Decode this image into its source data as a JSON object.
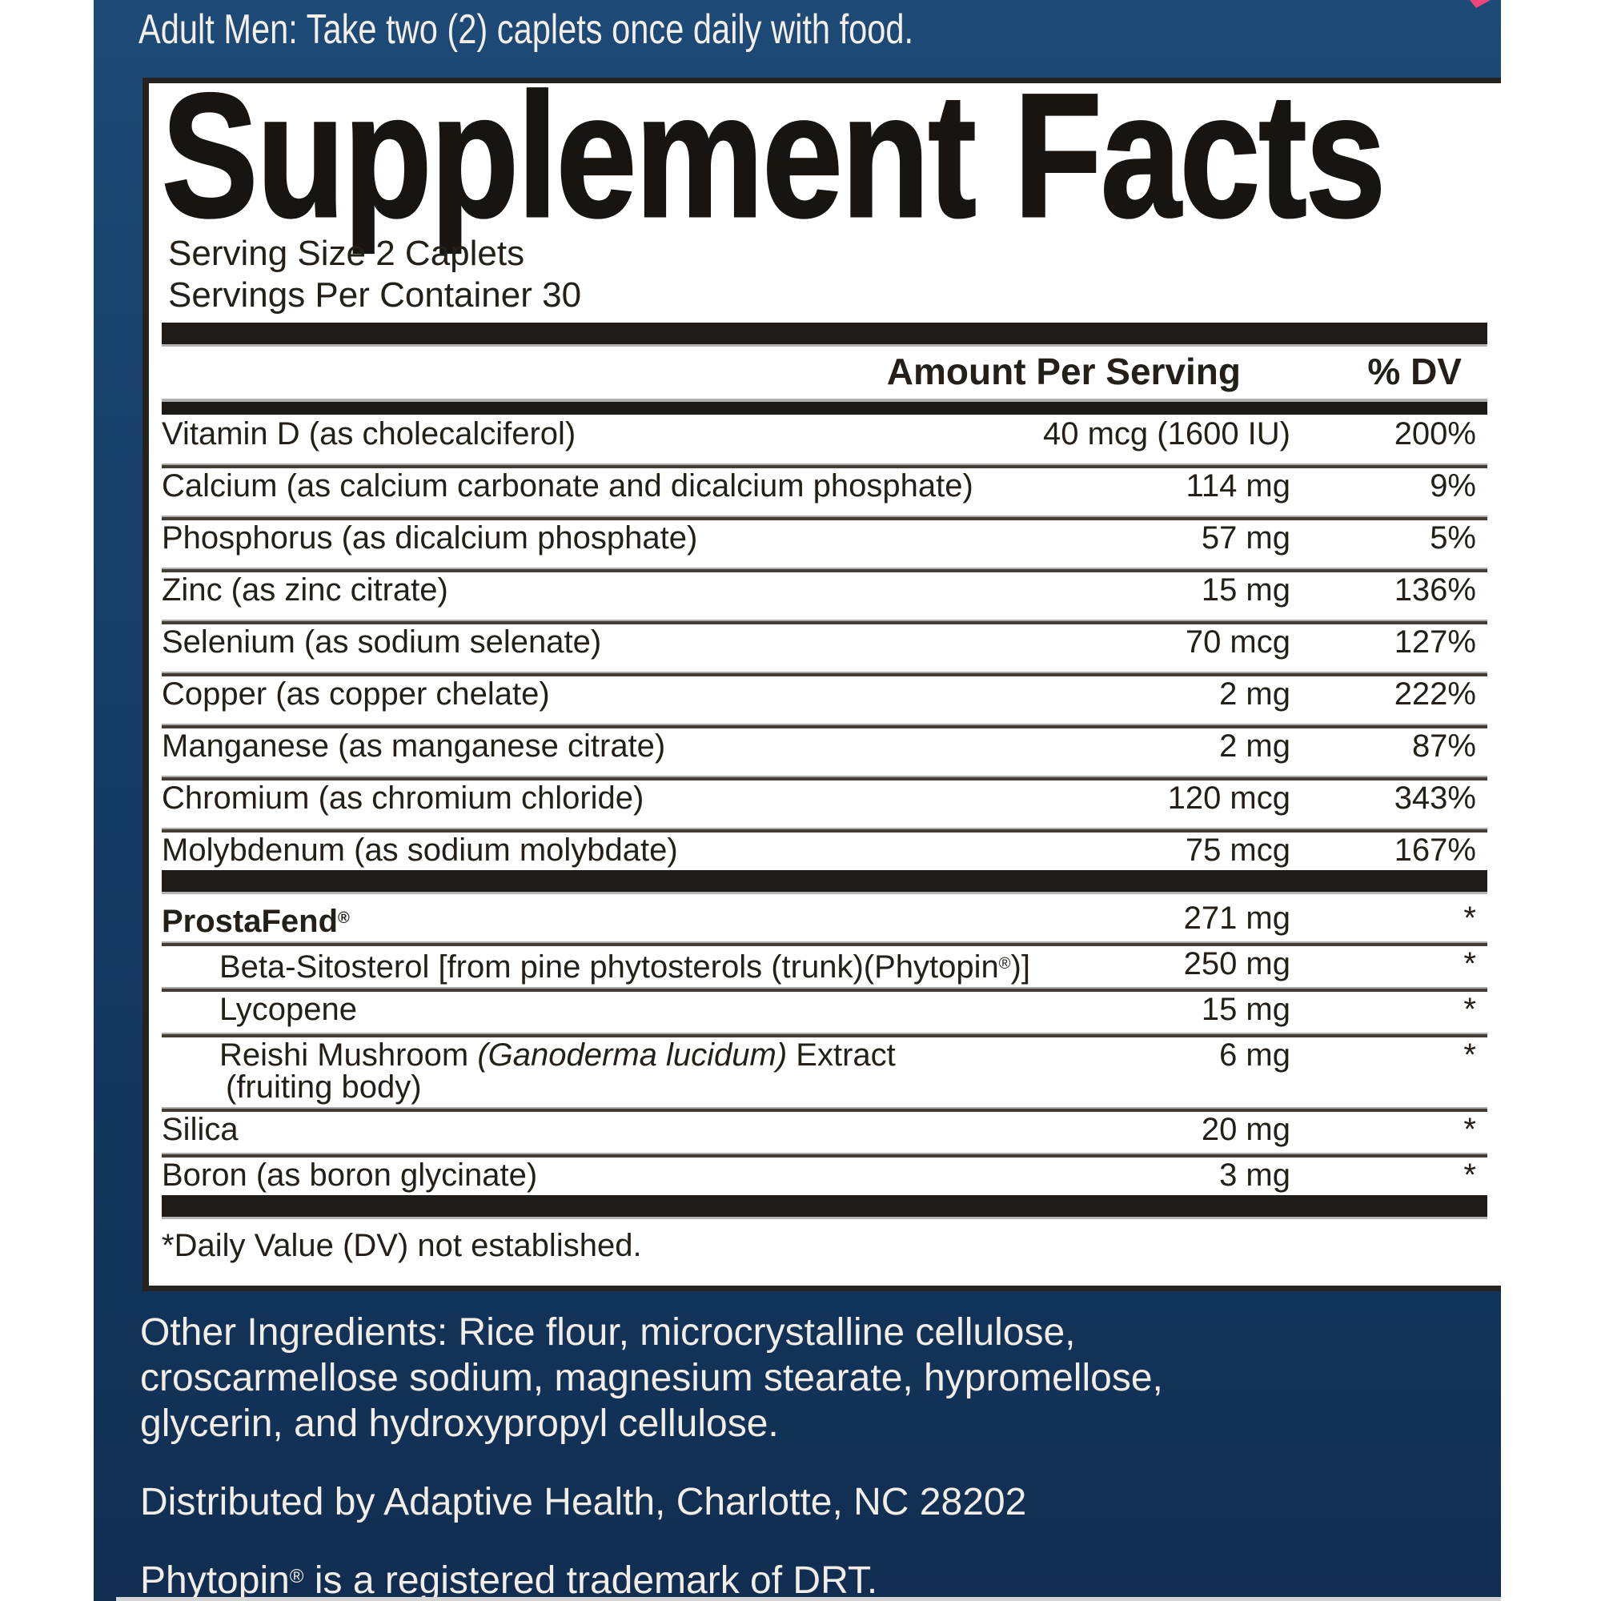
{
  "banner": {
    "dosage": "Adult Men: Take two (2) caplets once daily with food."
  },
  "panel": {
    "title": "Supplement Facts",
    "serving_size": "Serving Size 2 Caplets",
    "servings_per_container": "Servings Per Container 30",
    "columns": {
      "amount": "Amount Per Serving",
      "dv": "% DV"
    },
    "mineral_rows": [
      {
        "name": "Vitamin D (as cholecalciferol)",
        "amount": "40 mcg (1600 IU)",
        "dv": "200%"
      },
      {
        "name": "Calcium (as calcium carbonate and dicalcium phosphate)",
        "amount": "114 mg",
        "dv": "9%"
      },
      {
        "name": "Phosphorus (as dicalcium phosphate)",
        "amount": "57 mg",
        "dv": "5%"
      },
      {
        "name": "Zinc (as zinc citrate)",
        "amount": "15 mg",
        "dv": "136%"
      },
      {
        "name": "Selenium (as sodium selenate)",
        "amount": "70 mcg",
        "dv": "127%"
      },
      {
        "name": "Copper (as copper chelate)",
        "amount": "2 mg",
        "dv": "222%"
      },
      {
        "name": "Manganese (as manganese citrate)",
        "amount": "2 mg",
        "dv": "87%"
      },
      {
        "name": "Chromium (as chromium chloride)",
        "amount": "120 mcg",
        "dv": "343%"
      },
      {
        "name": "Molybdenum (as sodium molybdate)",
        "amount": "75 mcg",
        "dv": "167%"
      }
    ],
    "blend_rows": [
      {
        "segments": [
          {
            "t": "ProstaFend"
          },
          {
            "t": "®",
            "sup": true
          }
        ],
        "amount": "271 mg",
        "dv": "*",
        "bold": true
      },
      {
        "segments": [
          {
            "t": "Beta-Sitosterol [from pine phytosterols (trunk)(Phytopin"
          },
          {
            "t": "®",
            "sup": true
          },
          {
            "t": ")]"
          }
        ],
        "amount": "250 mg",
        "dv": "*",
        "indent": true
      },
      {
        "segments": [
          {
            "t": "Lycopene"
          }
        ],
        "amount": "15 mg",
        "dv": "*",
        "indent": true
      },
      {
        "segments": [
          {
            "t": "Reishi Mushroom "
          },
          {
            "t": "(Ganoderma lucidum)",
            "italic": true
          },
          {
            "t": " Extract"
          }
        ],
        "line2": "(fruiting body)",
        "amount": "6 mg",
        "dv": "*",
        "indent": true,
        "tall": true
      },
      {
        "segments": [
          {
            "t": "Silica"
          }
        ],
        "amount": "20 mg",
        "dv": "*"
      },
      {
        "segments": [
          {
            "t": "Boron (as boron glycinate)"
          }
        ],
        "amount": "3 mg",
        "dv": "*"
      }
    ],
    "footnote": "*Daily Value (DV) not established."
  },
  "footer": {
    "other_ingredients_lines": [
      "Other Ingredients: Rice flour, microcrystalline cellulose,",
      "croscarmellose sodium, magnesium stearate, hypromellose,",
      "glycerin, and hydroxypropyl cellulose."
    ],
    "distributed_by": "Distributed by Adaptive Health, Charlotte, NC 28202",
    "trademark": {
      "brand": "Phytopin",
      "reg": "®",
      "rest": " is a registered trademark of DRT."
    }
  },
  "colors": {
    "navy_top": "#1e4a78",
    "navy_bottom": "#112e52",
    "accent_pink": "#ee4879",
    "bar_black": "#1f1b18",
    "text_dark": "#242019",
    "text_light": "#f2eee5"
  }
}
